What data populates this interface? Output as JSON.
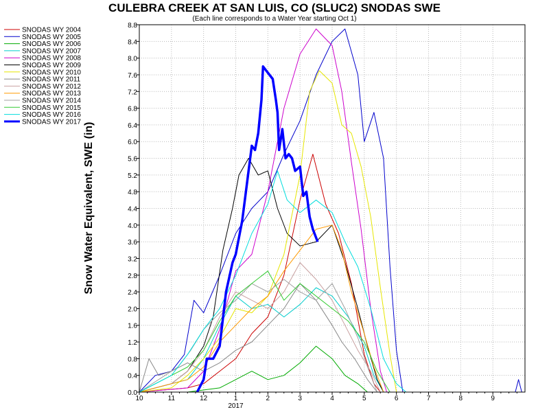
{
  "chart_data": {
    "type": "line",
    "title": "CULEBRA CREEK AT SAN LUIS, CO (SLUC2) SNODAS SWE",
    "subtitle": "(Each line corresponds to a Water Year starting Oct 1)",
    "ylabel": "Snow Water Equivalent, SWE (in)",
    "xlabel": "",
    "ylim": [
      0,
      8.8
    ],
    "xlim": [
      0,
      12
    ],
    "y_ticks": [
      "0.0",
      "0.4",
      "0.8",
      "1.2",
      "1.6",
      "2.0",
      "2.4",
      "2.8",
      "3.2",
      "3.6",
      "4.0",
      "4.4",
      "4.8",
      "5.2",
      "5.6",
      "6.0",
      "6.4",
      "6.8",
      "7.2",
      "7.6",
      "8.0",
      "8.4",
      "8.8"
    ],
    "x_ticks": [
      {
        "x": 0,
        "label": "10"
      },
      {
        "x": 1,
        "label": "11"
      },
      {
        "x": 2,
        "label": "12"
      },
      {
        "x": 3,
        "label": "1"
      },
      {
        "x": 4,
        "label": "2"
      },
      {
        "x": 5,
        "label": "3"
      },
      {
        "x": 6,
        "label": "4"
      },
      {
        "x": 7,
        "label": "5"
      },
      {
        "x": 8,
        "label": "6"
      },
      {
        "x": 9,
        "label": "7"
      },
      {
        "x": 10,
        "label": "8"
      },
      {
        "x": 11,
        "label": "9"
      }
    ],
    "x_year_label": {
      "x": 3,
      "label": "2017"
    },
    "grid": true,
    "legend_position": "left",
    "series": [
      {
        "name": "SNODAS WY 2004",
        "color": "#cc0000",
        "width": 1,
        "points": [
          [
            0,
            0
          ],
          [
            1.5,
            0.1
          ],
          [
            2,
            0.2
          ],
          [
            2.5,
            0.5
          ],
          [
            3,
            0.8
          ],
          [
            3.5,
            1.4
          ],
          [
            4,
            1.8
          ],
          [
            4.5,
            2.8
          ],
          [
            5,
            4.6
          ],
          [
            5.4,
            5.7
          ],
          [
            5.8,
            4.5
          ],
          [
            6.2,
            3.8
          ],
          [
            6.6,
            2.6
          ],
          [
            7,
            0.9
          ],
          [
            7.3,
            0.2
          ],
          [
            7.5,
            0
          ]
        ]
      },
      {
        "name": "SNODAS WY 2005",
        "color": "#0000cc",
        "width": 1,
        "points": [
          [
            0,
            0
          ],
          [
            0.5,
            0.4
          ],
          [
            1,
            0.5
          ],
          [
            1.4,
            0.9
          ],
          [
            1.7,
            2.2
          ],
          [
            2,
            1.9
          ],
          [
            2.5,
            2.8
          ],
          [
            3,
            3.8
          ],
          [
            3.5,
            4.4
          ],
          [
            4,
            4.8
          ],
          [
            4.5,
            5.7
          ],
          [
            5,
            6.5
          ],
          [
            5.5,
            7.6
          ],
          [
            6,
            8.4
          ],
          [
            6.4,
            8.7
          ],
          [
            6.8,
            7.6
          ],
          [
            7,
            6.0
          ],
          [
            7.3,
            6.7
          ],
          [
            7.6,
            5.6
          ],
          [
            7.8,
            3.0
          ],
          [
            8,
            1.0
          ],
          [
            8.2,
            0
          ],
          [
            11.7,
            0
          ],
          [
            11.8,
            0.3
          ],
          [
            11.9,
            0
          ]
        ]
      },
      {
        "name": "SNODAS WY 2006",
        "color": "#00aa00",
        "width": 1,
        "points": [
          [
            0,
            0
          ],
          [
            1.5,
            0
          ],
          [
            2.5,
            0.1
          ],
          [
            3,
            0.3
          ],
          [
            3.5,
            0.5
          ],
          [
            4,
            0.3
          ],
          [
            4.5,
            0.4
          ],
          [
            5,
            0.7
          ],
          [
            5.5,
            1.1
          ],
          [
            6,
            0.8
          ],
          [
            6.4,
            0.4
          ],
          [
            6.8,
            0.2
          ],
          [
            7.1,
            0
          ]
        ]
      },
      {
        "name": "SNODAS WY 2007",
        "color": "#00cccc",
        "width": 1,
        "points": [
          [
            0,
            0
          ],
          [
            1.5,
            0.3
          ],
          [
            2,
            0.8
          ],
          [
            2.5,
            1.6
          ],
          [
            3,
            2.3
          ],
          [
            3.5,
            2.0
          ],
          [
            4,
            2.1
          ],
          [
            4.5,
            1.8
          ],
          [
            5,
            2.1
          ],
          [
            5.5,
            2.5
          ],
          [
            6,
            2.3
          ],
          [
            6.5,
            1.8
          ],
          [
            7,
            1.1
          ],
          [
            7.3,
            0.4
          ],
          [
            7.6,
            0
          ]
        ]
      },
      {
        "name": "SNODAS WY 2008",
        "color": "#cc00cc",
        "width": 1,
        "points": [
          [
            0,
            0
          ],
          [
            1.5,
            0.1
          ],
          [
            2,
            0.5
          ],
          [
            2.5,
            1.5
          ],
          [
            3,
            2.9
          ],
          [
            3.5,
            3.3
          ],
          [
            4,
            4.8
          ],
          [
            4.5,
            6.8
          ],
          [
            5,
            8.1
          ],
          [
            5.5,
            8.7
          ],
          [
            6,
            8.3
          ],
          [
            6.3,
            7.2
          ],
          [
            6.6,
            5.5
          ],
          [
            6.9,
            3.9
          ],
          [
            7.2,
            2.0
          ],
          [
            7.5,
            0.5
          ],
          [
            7.7,
            0
          ]
        ]
      },
      {
        "name": "SNODAS WY 2009",
        "color": "#000000",
        "width": 1,
        "points": [
          [
            0,
            0
          ],
          [
            1,
            0.2
          ],
          [
            1.5,
            0.5
          ],
          [
            2,
            1.1
          ],
          [
            2.3,
            1.8
          ],
          [
            2.6,
            3.4
          ],
          [
            2.9,
            4.4
          ],
          [
            3.1,
            5.2
          ],
          [
            3.4,
            5.6
          ],
          [
            3.7,
            5.2
          ],
          [
            4,
            5.3
          ],
          [
            4.3,
            4.4
          ],
          [
            4.6,
            3.8
          ],
          [
            5,
            3.5
          ],
          [
            5.5,
            3.6
          ],
          [
            6,
            4.0
          ],
          [
            6.4,
            3.1
          ],
          [
            6.8,
            2.0
          ],
          [
            7.1,
            1.1
          ],
          [
            7.4,
            0.3
          ],
          [
            7.6,
            0
          ]
        ]
      },
      {
        "name": "SNODAS WY 2010",
        "color": "#e6e600",
        "width": 1,
        "points": [
          [
            0,
            0
          ],
          [
            1,
            0.1
          ],
          [
            1.5,
            0.4
          ],
          [
            2,
            0.8
          ],
          [
            2.5,
            1.3
          ],
          [
            3,
            2.0
          ],
          [
            3.5,
            1.9
          ],
          [
            4,
            2.3
          ],
          [
            4.5,
            3.3
          ],
          [
            5,
            5.2
          ],
          [
            5.3,
            7.2
          ],
          [
            5.6,
            7.7
          ],
          [
            6,
            7.4
          ],
          [
            6.3,
            6.4
          ],
          [
            6.6,
            6.2
          ],
          [
            6.9,
            5.4
          ],
          [
            7.2,
            4.2
          ],
          [
            7.5,
            2.5
          ],
          [
            7.8,
            0.9
          ],
          [
            8,
            0
          ]
        ]
      },
      {
        "name": "SNODAS WY 2011",
        "color": "#888888",
        "width": 1,
        "points": [
          [
            0,
            0
          ],
          [
            0.3,
            0.8
          ],
          [
            0.6,
            0.4
          ],
          [
            1,
            0.5
          ],
          [
            1.5,
            0.7
          ],
          [
            2,
            0.5
          ],
          [
            2.5,
            0.7
          ],
          [
            3,
            1.0
          ],
          [
            3.5,
            1.2
          ],
          [
            4,
            1.6
          ],
          [
            4.5,
            2.0
          ],
          [
            5,
            2.6
          ],
          [
            5.5,
            2.2
          ],
          [
            6,
            1.6
          ],
          [
            6.3,
            1.2
          ],
          [
            6.7,
            0.8
          ],
          [
            7.1,
            0.3
          ],
          [
            7.4,
            0
          ]
        ]
      },
      {
        "name": "SNODAS WY 2012",
        "color": "#c8a0a0",
        "width": 1,
        "points": [
          [
            0,
            0
          ],
          [
            1,
            0.2
          ],
          [
            1.5,
            0.5
          ],
          [
            2,
            1.0
          ],
          [
            2.5,
            1.8
          ],
          [
            3,
            2.4
          ],
          [
            3.5,
            2.2
          ],
          [
            4,
            2.0
          ],
          [
            4.5,
            2.4
          ],
          [
            5,
            3.1
          ],
          [
            5.5,
            2.7
          ],
          [
            6,
            2.2
          ],
          [
            6.4,
            1.6
          ],
          [
            6.8,
            1.0
          ],
          [
            7.2,
            0.5
          ],
          [
            7.5,
            0
          ]
        ]
      },
      {
        "name": "SNODAS WY 2013",
        "color": "#ff9900",
        "width": 1,
        "points": [
          [
            0,
            0
          ],
          [
            1,
            0.2
          ],
          [
            1.5,
            0.3
          ],
          [
            2,
            0.6
          ],
          [
            2.5,
            1.2
          ],
          [
            3,
            1.6
          ],
          [
            3.5,
            2.0
          ],
          [
            4,
            2.3
          ],
          [
            4.5,
            2.9
          ],
          [
            5,
            3.4
          ],
          [
            5.5,
            3.9
          ],
          [
            6,
            4.0
          ],
          [
            6.3,
            3.4
          ],
          [
            6.6,
            2.4
          ],
          [
            7,
            1.4
          ],
          [
            7.3,
            0.6
          ],
          [
            7.6,
            0
          ]
        ]
      },
      {
        "name": "SNODAS WY 2014",
        "color": "#a0a0a0",
        "width": 1,
        "points": [
          [
            0,
            0
          ],
          [
            0.8,
            0.4
          ],
          [
            1.2,
            0.6
          ],
          [
            1.6,
            1.0
          ],
          [
            2,
            1.5
          ],
          [
            2.5,
            1.9
          ],
          [
            3,
            2.2
          ],
          [
            3.5,
            2.6
          ],
          [
            4,
            2.4
          ],
          [
            4.5,
            2.7
          ],
          [
            5,
            2.4
          ],
          [
            5.5,
            2.2
          ],
          [
            6,
            2.6
          ],
          [
            6.4,
            2.0
          ],
          [
            6.8,
            1.3
          ],
          [
            7.1,
            0.6
          ],
          [
            7.4,
            0
          ]
        ]
      },
      {
        "name": "SNODAS WY 2015",
        "color": "#33cc33",
        "width": 1,
        "points": [
          [
            0,
            0
          ],
          [
            1,
            0.4
          ],
          [
            1.5,
            0.6
          ],
          [
            2,
            1.0
          ],
          [
            2.5,
            1.7
          ],
          [
            3,
            2.3
          ],
          [
            3.5,
            2.6
          ],
          [
            4,
            2.9
          ],
          [
            4.5,
            2.2
          ],
          [
            5,
            2.6
          ],
          [
            5.5,
            2.3
          ],
          [
            6,
            2.0
          ],
          [
            6.5,
            1.7
          ],
          [
            7,
            1.2
          ],
          [
            7.4,
            0.5
          ],
          [
            7.8,
            0
          ]
        ]
      },
      {
        "name": "SNODAS WY 2016",
        "color": "#00dddd",
        "width": 1,
        "points": [
          [
            0,
            0
          ],
          [
            1,
            0.4
          ],
          [
            1.5,
            0.9
          ],
          [
            2,
            1.5
          ],
          [
            2.5,
            2.0
          ],
          [
            3,
            2.8
          ],
          [
            3.5,
            3.8
          ],
          [
            4,
            4.5
          ],
          [
            4.3,
            5.3
          ],
          [
            4.6,
            4.6
          ],
          [
            5,
            4.3
          ],
          [
            5.5,
            4.6
          ],
          [
            6,
            4.3
          ],
          [
            6.4,
            3.6
          ],
          [
            6.8,
            3.0
          ],
          [
            7.2,
            2.0
          ],
          [
            7.6,
            0.8
          ],
          [
            8,
            0.2
          ],
          [
            8.3,
            0
          ]
        ]
      },
      {
        "name": "SNODAS WY 2017",
        "color": "#0000ff",
        "width": 3.5,
        "points": [
          [
            1.8,
            0
          ],
          [
            2,
            0.3
          ],
          [
            2.1,
            0.8
          ],
          [
            2.3,
            0.8
          ],
          [
            2.5,
            1.1
          ],
          [
            2.7,
            2.4
          ],
          [
            2.9,
            3.1
          ],
          [
            3,
            3.3
          ],
          [
            3.1,
            3.7
          ],
          [
            3.2,
            4.1
          ],
          [
            3.35,
            5.0
          ],
          [
            3.5,
            5.9
          ],
          [
            3.6,
            5.8
          ],
          [
            3.7,
            6.2
          ],
          [
            3.8,
            7.0
          ],
          [
            3.85,
            7.8
          ],
          [
            3.95,
            7.7
          ],
          [
            4.05,
            7.6
          ],
          [
            4.15,
            7.5
          ],
          [
            4.25,
            7.0
          ],
          [
            4.3,
            6.7
          ],
          [
            4.35,
            5.8
          ],
          [
            4.45,
            6.3
          ],
          [
            4.55,
            5.6
          ],
          [
            4.65,
            5.7
          ],
          [
            4.75,
            5.6
          ],
          [
            4.85,
            5.3
          ],
          [
            5,
            5.4
          ],
          [
            5.1,
            4.7
          ],
          [
            5.2,
            4.8
          ],
          [
            5.3,
            4.2
          ],
          [
            5.4,
            3.9
          ],
          [
            5.5,
            3.7
          ],
          [
            5.55,
            3.6
          ]
        ]
      }
    ]
  }
}
